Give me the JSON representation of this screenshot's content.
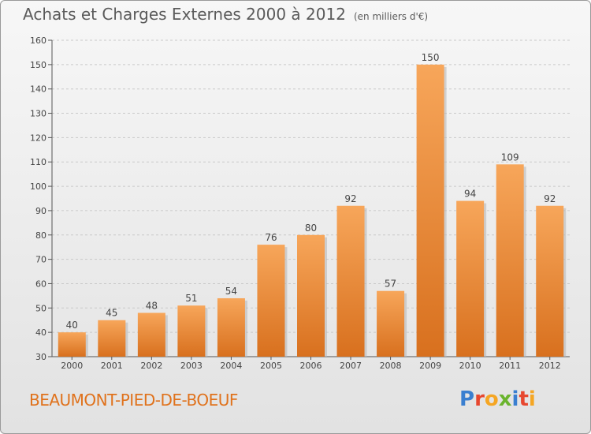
{
  "title": "Achats et Charges Externes 2000 à 2012",
  "subtitle": "(en milliers d'€)",
  "commune": "BEAUMONT-PIED-DE-BOEUF",
  "logo": {
    "letters": [
      "P",
      "r",
      "o",
      "x",
      "i",
      "t",
      "i"
    ],
    "colors": [
      "#3a7fd0",
      "#e7472f",
      "#f5a623",
      "#6ab42d",
      "#3a7fd0",
      "#e7472f",
      "#f5a623"
    ]
  },
  "chart_data": {
    "type": "bar",
    "categories": [
      "2000",
      "2001",
      "2002",
      "2003",
      "2004",
      "2005",
      "2006",
      "2007",
      "2008",
      "2009",
      "2010",
      "2011",
      "2012"
    ],
    "values": [
      40,
      45,
      48,
      51,
      54,
      76,
      80,
      92,
      57,
      150,
      94,
      109,
      92
    ],
    "ylim": [
      30,
      160
    ],
    "yticks": [
      30,
      40,
      50,
      60,
      70,
      80,
      90,
      100,
      110,
      120,
      130,
      140,
      150,
      160
    ],
    "grid": "horizontal dashed",
    "bar_color": "#f0913a"
  }
}
